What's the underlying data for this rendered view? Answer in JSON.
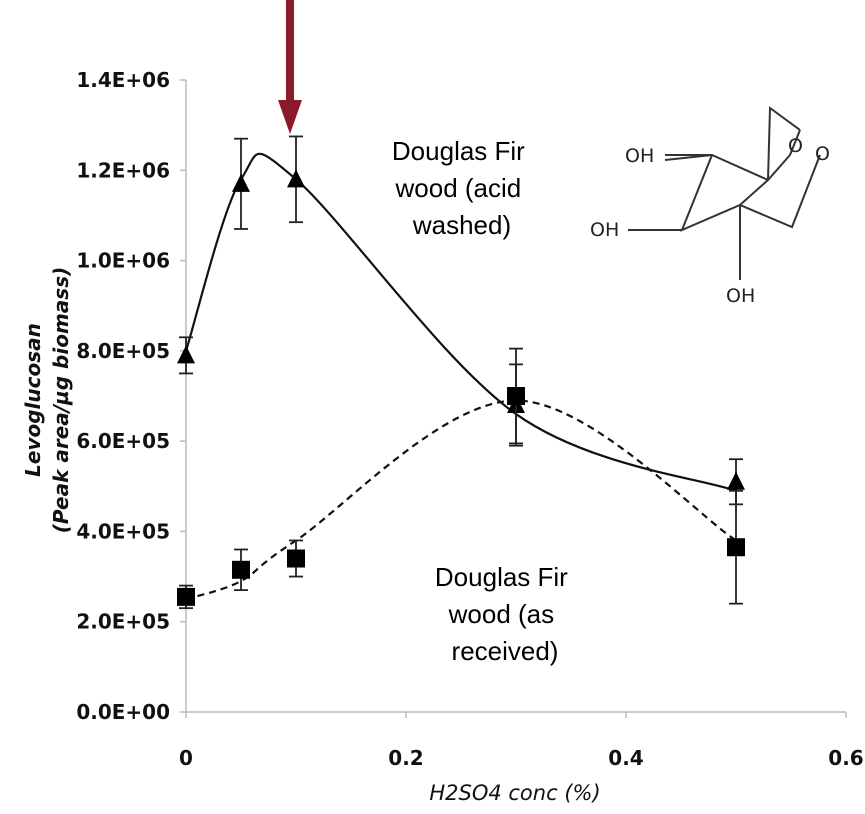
{
  "chart_data": {
    "type": "line",
    "xlabel": "H2SO4 conc (%)",
    "ylabel_line1": "Levoglucosan",
    "ylabel_line2": "(Peak area/µg biomass)",
    "xlim": [
      0,
      0.6
    ],
    "ylim": [
      0,
      1400000
    ],
    "x_ticks": [
      "0",
      "0.2",
      "0.4",
      "0.6"
    ],
    "x_tick_values": [
      0,
      0.2,
      0.4,
      0.6
    ],
    "y_ticks": [
      "0.0E+00",
      "2.0E+05",
      "4.0E+05",
      "6.0E+05",
      "8.0E+05",
      "1.0E+06",
      "1.2E+06",
      "1.4E+06"
    ],
    "y_tick_values": [
      0,
      200000,
      400000,
      600000,
      800000,
      1000000,
      1200000,
      1400000
    ],
    "grid": false,
    "series": [
      {
        "name": "Douglas Fir wood (acid washed)",
        "marker": "triangle",
        "line": "solid",
        "x": [
          0,
          0.05,
          0.1,
          0.3,
          0.5
        ],
        "y": [
          790000,
          1170000,
          1180000,
          680000,
          510000
        ],
        "err": [
          40000,
          100000,
          95000,
          90000,
          50000
        ],
        "curve_y": [
          800000,
          1180000,
          1180000,
          660000,
          490000
        ]
      },
      {
        "name": "Douglas Fir wood (as received)",
        "marker": "square",
        "line": "dashed",
        "x": [
          0,
          0.05,
          0.1,
          0.3,
          0.5
        ],
        "y": [
          255000,
          315000,
          340000,
          700000,
          365000
        ],
        "err": [
          25000,
          45000,
          40000,
          105000,
          125000
        ],
        "curve_y": [
          250000,
          290000,
          380000,
          690000,
          380000
        ]
      }
    ],
    "annotations": [
      {
        "lines": [
          "Douglas Fir",
          "wood  (acid",
          "washed)"
        ],
        "color": "#000000"
      },
      {
        "lines": [
          "Douglas Fir",
          "wood  (as",
          "received)"
        ],
        "color": "#000000"
      }
    ],
    "arrow": {
      "color": "#8b1a2b",
      "points_to_x": 0.095
    },
    "inset": {
      "substituents": [
        "OH",
        "OH",
        "OH",
        "O",
        "O"
      ]
    }
  }
}
